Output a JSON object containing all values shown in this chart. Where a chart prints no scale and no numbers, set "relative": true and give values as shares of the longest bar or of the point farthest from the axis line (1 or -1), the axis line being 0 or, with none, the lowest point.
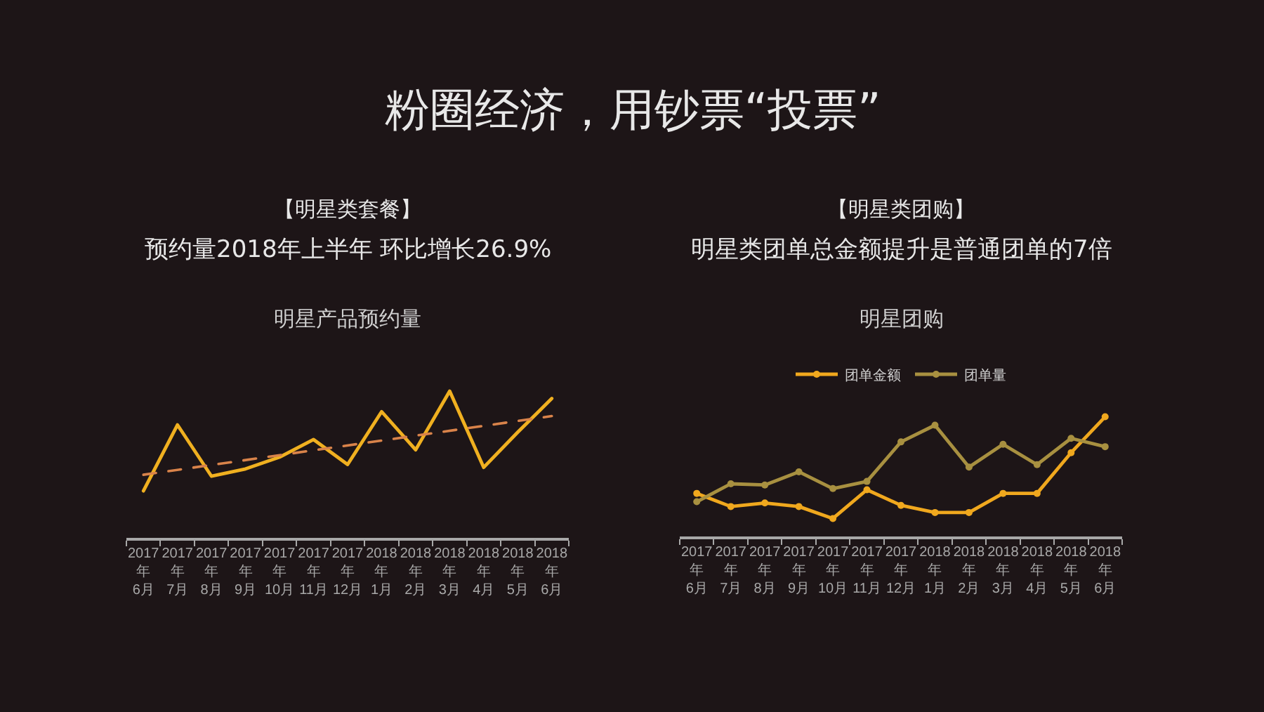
{
  "chart_data": [
    {
      "type": "other",
      "title": "粉圈经济，用钞票“投票”"
    },
    {
      "type": "line",
      "title": "明星产品预约量",
      "annotations": [
        "【明星类套餐】",
        "预约量2018年上半年 环比增长26.9%"
      ],
      "relative": true,
      "categories": [
        "2017年6月",
        "2017年7月",
        "2017年8月",
        "2017年9月",
        "2017年10月",
        "2017年11月",
        "2017年12月",
        "2018年1月",
        "2018年2月",
        "2018年3月",
        "2018年4月",
        "2018年5月",
        "2018年6月"
      ],
      "series": [
        {
          "color": "#f0b020",
          "values": [
            0.32,
            0.77,
            0.42,
            0.47,
            0.55,
            0.67,
            0.5,
            0.86,
            0.6,
            1.0,
            0.48,
            0.72,
            0.95
          ]
        },
        {
          "color": "#d9834a",
          "line_style": "dashed",
          "x": [
            "2017年6月",
            "2018年6月"
          ],
          "values": [
            0.43,
            0.83
          ]
        }
      ]
    },
    {
      "type": "line",
      "title": "明星团购",
      "annotations": [
        "【明星类团购】",
        "明星类团单总金额提升是普通团单的7倍"
      ],
      "relative": true,
      "legend": "top",
      "marker": "circle",
      "categories": [
        "2017年6月",
        "2017年7月",
        "2017年8月",
        "2017年9月",
        "2017年10月",
        "2017年11月",
        "2017年12月",
        "2018年1月",
        "2018年2月",
        "2018年3月",
        "2018年4月",
        "2018年5月",
        "2018年6月"
      ],
      "series": [
        {
          "name": "团单金额",
          "color": "#f0a81e",
          "values": [
            0.36,
            0.25,
            0.28,
            0.25,
            0.15,
            0.39,
            0.26,
            0.2,
            0.2,
            0.36,
            0.36,
            0.7,
            1.0
          ]
        },
        {
          "name": "团单量",
          "color": "#a89040",
          "values": [
            0.29,
            0.44,
            0.43,
            0.54,
            0.4,
            0.46,
            0.79,
            0.93,
            0.58,
            0.77,
            0.6,
            0.82,
            0.75
          ]
        }
      ]
    }
  ]
}
